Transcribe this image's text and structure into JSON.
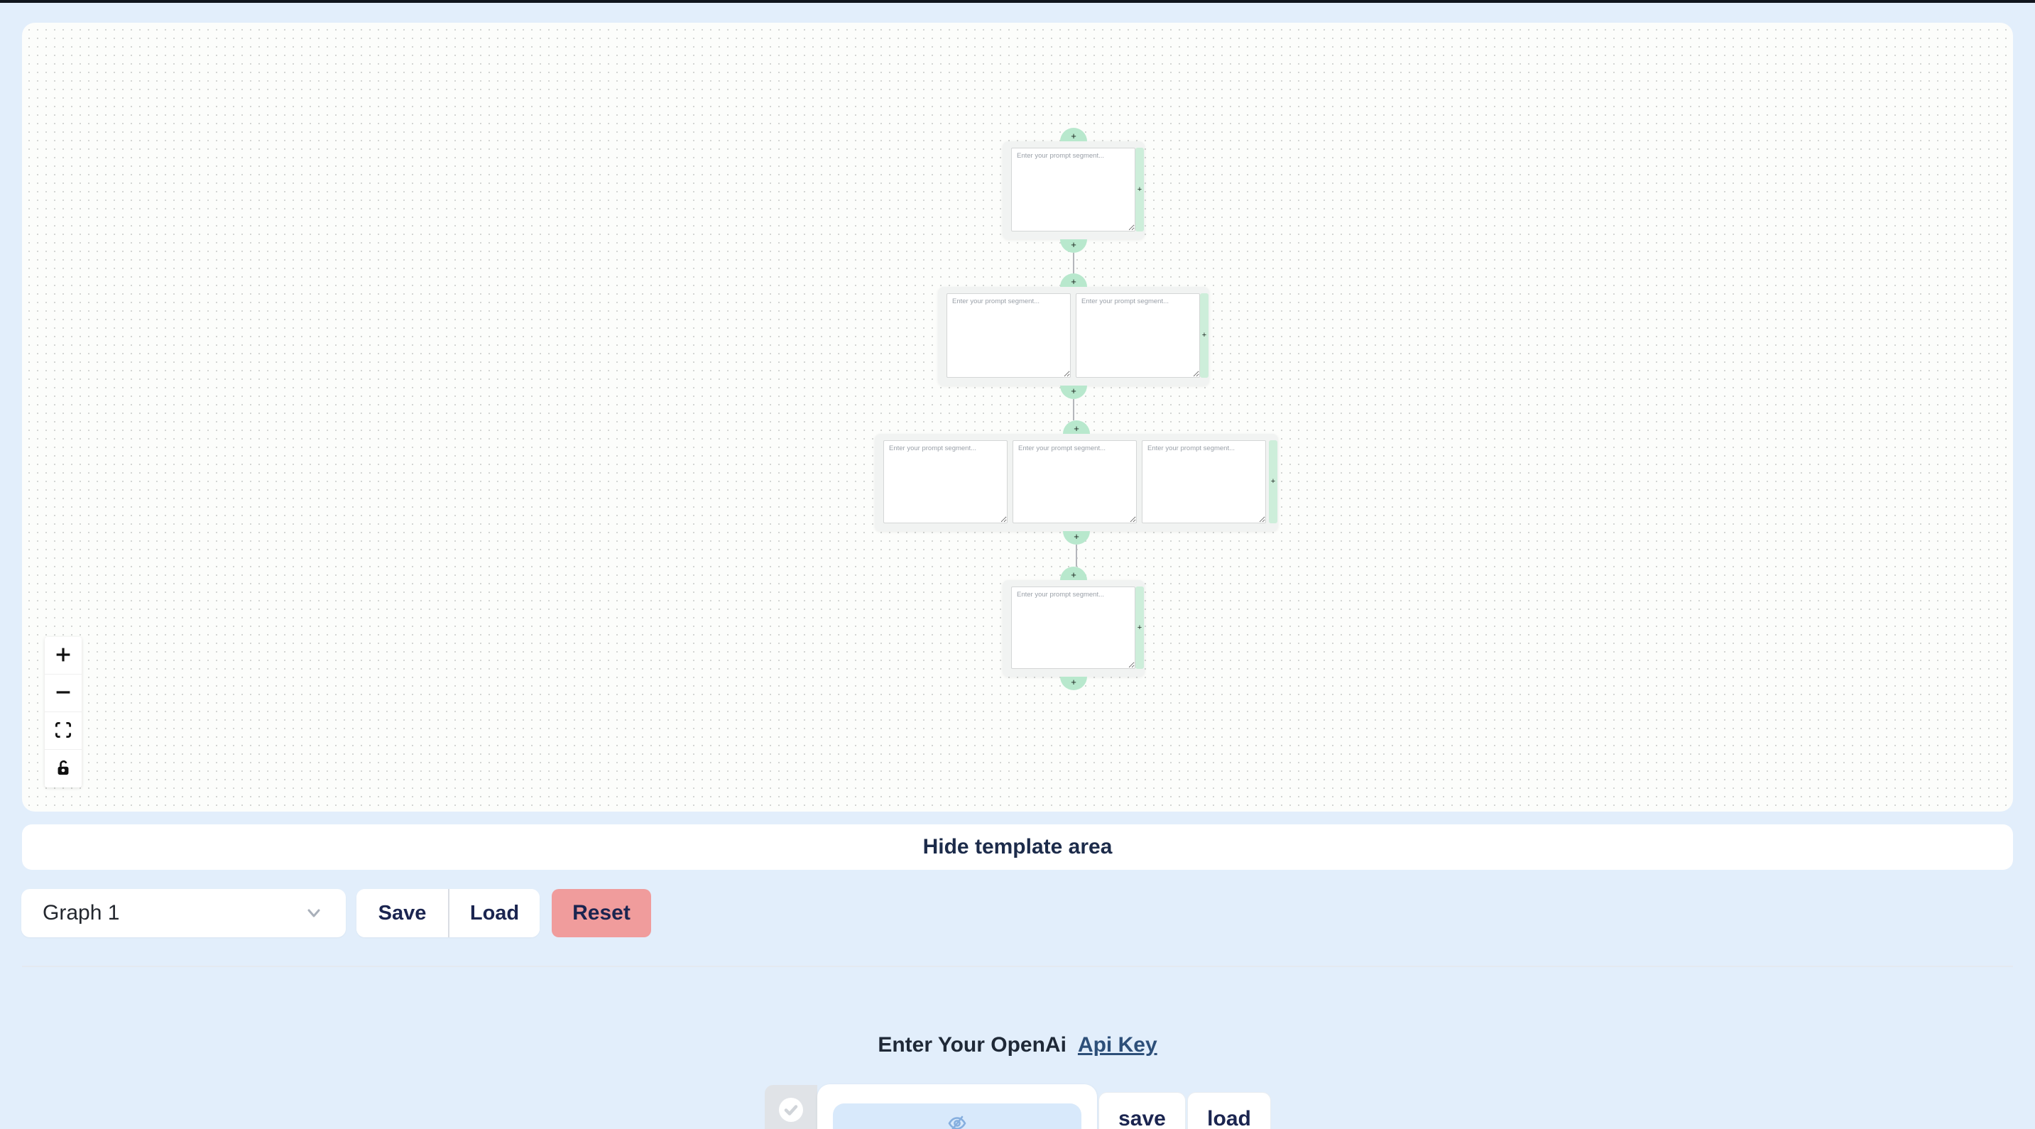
{
  "app": {
    "top_bar_color": "#10151d",
    "background": "#e2eefb"
  },
  "canvas": {
    "background": "#fcfdfb",
    "dot_color": "#d3d5d3",
    "node_accent_color": "#b8e8cd",
    "strip_color": "#cdeeda",
    "placeholder": "Enter your prompt segment...",
    "add_label": "+",
    "rows": [
      {
        "segments": 1
      },
      {
        "segments": 2
      },
      {
        "segments": 3
      },
      {
        "segments": 1
      }
    ],
    "controls": [
      {
        "id": "zoom-in-button",
        "icon": "plus-icon"
      },
      {
        "id": "zoom-out-button",
        "icon": "minus-icon"
      },
      {
        "id": "fit-view-button",
        "icon": "fit-view-icon"
      },
      {
        "id": "lock-button",
        "icon": "unlock-icon"
      }
    ]
  },
  "template_bar": {
    "label": "Hide template area"
  },
  "toolbar": {
    "graph_value": "Graph 1",
    "save_label": "Save",
    "load_label": "Load",
    "reset_label": "Reset",
    "reset_color": "#f09c9c"
  },
  "api": {
    "heading": "Enter Your OpenAi",
    "link_label": "Api Key",
    "save_label": "save",
    "load_label": "load"
  }
}
